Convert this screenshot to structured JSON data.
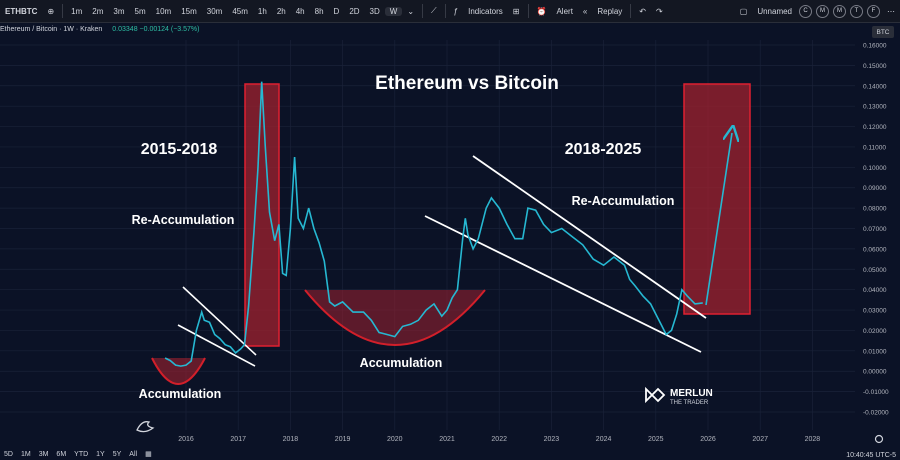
{
  "toolbar": {
    "symbol": "ETHBTC",
    "timeframes": [
      "1m",
      "2m",
      "3m",
      "5m",
      "10m",
      "15m",
      "30m",
      "45m",
      "1h",
      "2h",
      "4h",
      "8h",
      "D",
      "2D",
      "3D",
      "W"
    ],
    "active_timeframe": "W",
    "indicators_label": "Indicators",
    "alert_label": "Alert",
    "replay_label": "Replay",
    "layout_name": "Unnamed",
    "circle_buttons": [
      "C",
      "M",
      "M",
      "T",
      "F"
    ]
  },
  "legend": {
    "title": "Ethereum / Bitcoin · 1W · Kraken",
    "value": "0.03348 −0.00124 (−3.57%)"
  },
  "price_axis_label": "BTC",
  "bottom": {
    "ranges": [
      "5D",
      "1M",
      "3M",
      "6M",
      "YTD",
      "1Y",
      "5Y",
      "All"
    ],
    "clock": "10:40:45 UTC-5"
  },
  "annotations": {
    "title": "Ethereum vs Bitcoin",
    "period_left": "2015-2018",
    "period_right": "2018-2025",
    "reacc_left": "Re-Accumulation",
    "reacc_right": "Re-Accumulation",
    "acc_left": "Accumulation",
    "acc_mid": "Accumulation",
    "logo_line1": "MERLUN",
    "logo_line2": "THE TRADER"
  },
  "colors": {
    "line": "#26b8d2",
    "box_fill": "#a0212f",
    "box_stroke": "#e02030",
    "bowl": "#d21f2a",
    "background": "#0b1226"
  },
  "chart_data": {
    "type": "line",
    "x_ticks": [
      "2016",
      "2017",
      "2018",
      "2019",
      "2020",
      "2021",
      "2022",
      "2023",
      "2024",
      "2025",
      "2026",
      "2027",
      "2028"
    ],
    "y_ticks": [
      "0.16000",
      "0.15000",
      "0.14000",
      "0.13000",
      "0.12000",
      "0.11000",
      "0.10000",
      "0.09000",
      "0.08000",
      "0.07000",
      "0.06000",
      "0.05000",
      "0.04000",
      "0.03000",
      "0.02000",
      "0.01000",
      "0.00000",
      "-0.01000",
      "-0.02000"
    ],
    "ylim": [
      -0.02,
      0.16
    ],
    "series": [
      {
        "values": [
          [
            2015.6,
            0.0065
          ],
          [
            2015.7,
            0.0052
          ],
          [
            2015.8,
            0.003
          ],
          [
            2015.9,
            0.0025
          ],
          [
            2016.0,
            0.003
          ],
          [
            2016.1,
            0.005
          ],
          [
            2016.2,
            0.02
          ],
          [
            2016.3,
            0.029
          ],
          [
            2016.35,
            0.025
          ],
          [
            2016.45,
            0.024
          ],
          [
            2016.55,
            0.018
          ],
          [
            2016.65,
            0.016
          ],
          [
            2016.75,
            0.013
          ],
          [
            2016.85,
            0.012
          ],
          [
            2016.95,
            0.009
          ],
          [
            2017.05,
            0.011
          ],
          [
            2017.12,
            0.013
          ],
          [
            2017.2,
            0.032
          ],
          [
            2017.3,
            0.068
          ],
          [
            2017.38,
            0.1
          ],
          [
            2017.45,
            0.142
          ],
          [
            2017.52,
            0.11
          ],
          [
            2017.6,
            0.078
          ],
          [
            2017.7,
            0.064
          ],
          [
            2017.78,
            0.072
          ],
          [
            2017.85,
            0.048
          ],
          [
            2017.92,
            0.047
          ],
          [
            2018.0,
            0.07
          ],
          [
            2018.08,
            0.105
          ],
          [
            2018.15,
            0.075
          ],
          [
            2018.25,
            0.07
          ],
          [
            2018.35,
            0.08
          ],
          [
            2018.45,
            0.07
          ],
          [
            2018.55,
            0.063
          ],
          [
            2018.65,
            0.054
          ],
          [
            2018.75,
            0.034
          ],
          [
            2018.85,
            0.032
          ],
          [
            2019.0,
            0.034
          ],
          [
            2019.2,
            0.029
          ],
          [
            2019.4,
            0.029
          ],
          [
            2019.55,
            0.025
          ],
          [
            2019.7,
            0.019
          ],
          [
            2019.85,
            0.018
          ],
          [
            2020.0,
            0.017
          ],
          [
            2020.15,
            0.022
          ],
          [
            2020.3,
            0.023
          ],
          [
            2020.45,
            0.025
          ],
          [
            2020.6,
            0.03
          ],
          [
            2020.75,
            0.033
          ],
          [
            2020.9,
            0.027
          ],
          [
            2021.0,
            0.03
          ],
          [
            2021.1,
            0.036
          ],
          [
            2021.2,
            0.04
          ],
          [
            2021.3,
            0.065
          ],
          [
            2021.35,
            0.075
          ],
          [
            2021.4,
            0.067
          ],
          [
            2021.5,
            0.06
          ],
          [
            2021.6,
            0.065
          ],
          [
            2021.75,
            0.08
          ],
          [
            2021.85,
            0.085
          ],
          [
            2022.0,
            0.08
          ],
          [
            2022.15,
            0.072
          ],
          [
            2022.3,
            0.065
          ],
          [
            2022.45,
            0.065
          ],
          [
            2022.55,
            0.08
          ],
          [
            2022.7,
            0.079
          ],
          [
            2022.85,
            0.072
          ],
          [
            2023.0,
            0.068
          ],
          [
            2023.2,
            0.07
          ],
          [
            2023.4,
            0.066
          ],
          [
            2023.6,
            0.062
          ],
          [
            2023.8,
            0.055
          ],
          [
            2024.0,
            0.052
          ],
          [
            2024.2,
            0.056
          ],
          [
            2024.4,
            0.052
          ],
          [
            2024.5,
            0.045
          ],
          [
            2024.6,
            0.042
          ],
          [
            2024.75,
            0.037
          ],
          [
            2024.9,
            0.033
          ],
          [
            2025.0,
            0.028
          ],
          [
            2025.1,
            0.023
          ],
          [
            2025.2,
            0.018
          ],
          [
            2025.3,
            0.02
          ],
          [
            2025.4,
            0.028
          ],
          [
            2025.5,
            0.04
          ],
          [
            2025.6,
            0.037
          ],
          [
            2025.75,
            0.033
          ],
          [
            2025.9,
            0.0335
          ]
        ]
      }
    ]
  }
}
